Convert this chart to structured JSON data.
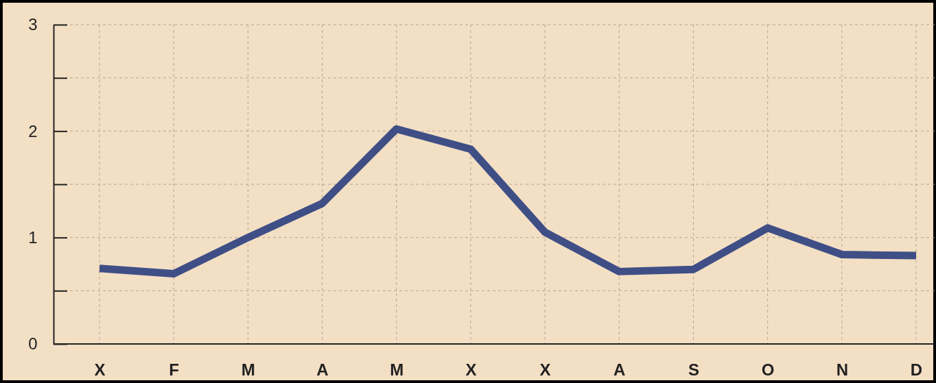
{
  "chart_data": {
    "type": "line",
    "categories": [
      "X",
      "F",
      "M",
      "A",
      "M",
      "X",
      "X",
      "A",
      "S",
      "O",
      "N",
      "D"
    ],
    "series": [
      {
        "color": "#3f4f86",
        "values": [
          0.71,
          0.66,
          1.0,
          1.32,
          2.02,
          1.83,
          1.05,
          0.68,
          0.7,
          1.09,
          0.84,
          0.83
        ]
      }
    ],
    "ylim": [
      0,
      3
    ],
    "yticks": [
      0,
      {
        "value": 0.5,
        "label": null
      },
      1,
      {
        "value": 1.5,
        "label": null
      },
      2,
      {
        "value": 2.5,
        "label": null
      },
      3
    ],
    "grid": true,
    "marker": "none",
    "line_style": "solid"
  }
}
